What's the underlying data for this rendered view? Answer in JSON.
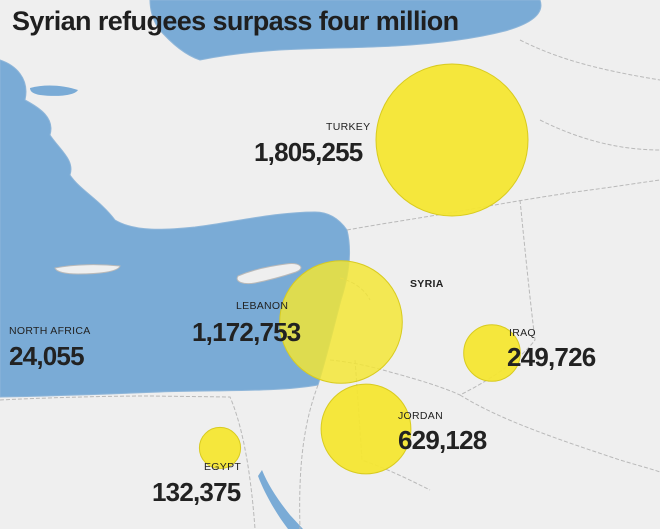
{
  "title": "Syrian refugees surpass four million",
  "colors": {
    "sea": "#7aabd6",
    "land": "#efefef",
    "border": "#b9b9b9",
    "bubble": "#f4e631",
    "bubble_stroke": "#d8cb1f",
    "text": "#222222"
  },
  "regions": {
    "syria": {
      "name": "SYRIA"
    }
  },
  "refugees": [
    {
      "key": "turkey",
      "name": "TURKEY",
      "value": "1,805,255",
      "count": 1805255
    },
    {
      "key": "lebanon",
      "name": "LEBANON",
      "value": "1,172,753",
      "count": 1172753
    },
    {
      "key": "jordan",
      "name": "JORDAN",
      "value": "629,128",
      "count": 629128
    },
    {
      "key": "iraq",
      "name": "IRAQ",
      "value": "249,726",
      "count": 249726
    },
    {
      "key": "egypt",
      "name": "EGYPT",
      "value": "132,375",
      "count": 132375
    },
    {
      "key": "north_africa",
      "name": "NORTH AFRICA",
      "value": "24,055",
      "count": 24055
    }
  ]
}
